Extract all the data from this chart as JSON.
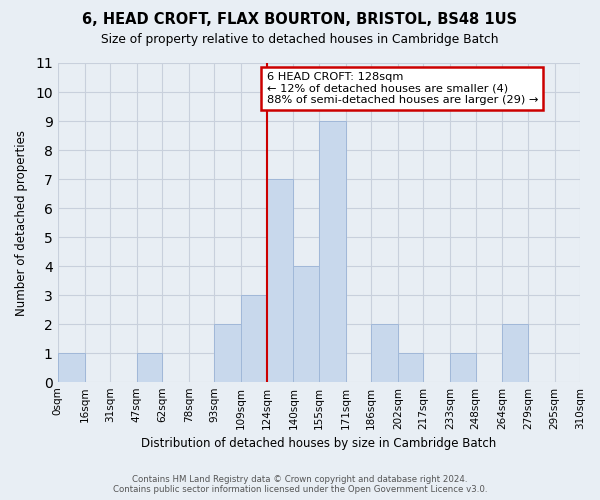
{
  "title": "6, HEAD CROFT, FLAX BOURTON, BRISTOL, BS48 1US",
  "subtitle": "Size of property relative to detached houses in Cambridge Batch",
  "xlabel": "Distribution of detached houses by size in Cambridge Batch",
  "ylabel": "Number of detached properties",
  "footnote1": "Contains HM Land Registry data © Crown copyright and database right 2024.",
  "footnote2": "Contains public sector information licensed under the Open Government Licence v3.0.",
  "bin_labels": [
    "0sqm",
    "16sqm",
    "31sqm",
    "47sqm",
    "62sqm",
    "78sqm",
    "93sqm",
    "109sqm",
    "124sqm",
    "140sqm",
    "155sqm",
    "171sqm",
    "186sqm",
    "202sqm",
    "217sqm",
    "233sqm",
    "248sqm",
    "264sqm",
    "279sqm",
    "295sqm",
    "310sqm"
  ],
  "bin_edges": [
    0,
    16,
    31,
    47,
    62,
    78,
    93,
    109,
    124,
    140,
    155,
    171,
    186,
    202,
    217,
    233,
    248,
    264,
    279,
    295,
    310
  ],
  "bar_heights": [
    1,
    0,
    0,
    1,
    0,
    0,
    2,
    3,
    7,
    4,
    9,
    0,
    2,
    1,
    0,
    1,
    0,
    2,
    0,
    0
  ],
  "bar_color": "#c8d8ec",
  "bar_edge_color": "#a0b8d8",
  "property_line_x": 124,
  "ylim": [
    0,
    11
  ],
  "yticks": [
    0,
    1,
    2,
    3,
    4,
    5,
    6,
    7,
    8,
    9,
    10,
    11
  ],
  "annotation_title": "6 HEAD CROFT: 128sqm",
  "annotation_line1": "← 12% of detached houses are smaller (4)",
  "annotation_line2": "88% of semi-detached houses are larger (29) →",
  "annotation_box_color": "#ffffff",
  "annotation_box_edge": "#cc0000",
  "grid_color": "#c8d0dc",
  "bg_color": "#e8eef4"
}
